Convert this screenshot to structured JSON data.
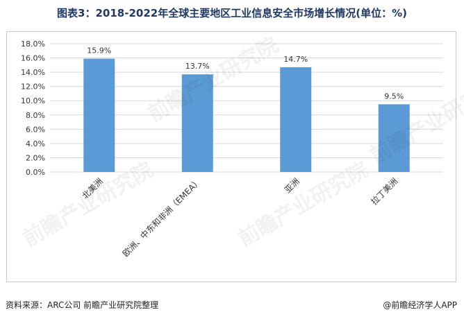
{
  "title": "图表3：2018-2022年全球主要地区工业信息安全市场增长情况(单位：%)",
  "footer": {
    "source": "资料来源：ARC公司 前瞻产业研究院整理",
    "brand": "@前瞻经济学人APP"
  },
  "watermark": "前瞻产业研究院",
  "colors": {
    "bar": "#5b9bd5",
    "grid": "#d9d9d9",
    "title": "#1f3864"
  },
  "chart_data": {
    "type": "bar",
    "title": "图表3：2018-2022年全球主要地区工业信息安全市场增长情况(单位：%)",
    "categories": [
      "北美洲",
      "欧洲、中东和非洲（EMEA）",
      "亚洲",
      "拉丁美洲"
    ],
    "values": [
      15.9,
      13.7,
      14.7,
      9.5
    ],
    "data_labels": [
      "15.9%",
      "13.7%",
      "14.7%",
      "9.5%"
    ],
    "yticks": [
      "0.0%",
      "2.0%",
      "4.0%",
      "6.0%",
      "8.0%",
      "10.0%",
      "12.0%",
      "14.0%",
      "16.0%",
      "18.0%"
    ],
    "ylim": [
      0,
      18
    ],
    "grid": true,
    "legend": "none"
  }
}
